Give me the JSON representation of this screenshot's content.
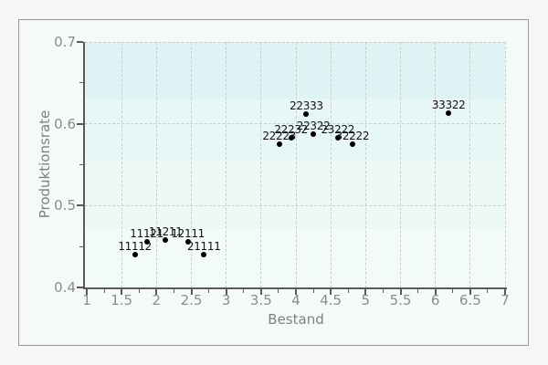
{
  "page": {
    "background": "#f7f7f7"
  },
  "frame": {
    "background": "#f5faf7",
    "border_color": "#999999"
  },
  "chart_data": {
    "type": "scatter",
    "title": "",
    "xlabel": "Bestand",
    "ylabel": "Produktionsrate",
    "xlim": [
      1,
      7
    ],
    "ylim": [
      0.4,
      0.7
    ],
    "grid": "dashed",
    "legend": null,
    "x_ticks_major": [
      1,
      1.5,
      2,
      2.5,
      3,
      3.5,
      4,
      4.5,
      5,
      5.5,
      6,
      6.5,
      7
    ],
    "x_tick_labels": [
      "1",
      "1.5",
      "2",
      "2.5",
      "3",
      "3.5",
      "4",
      "4.5",
      "5",
      "5.5",
      "6",
      "6.5",
      "7"
    ],
    "x_ticks_minor": [
      1.25,
      1.75,
      2.25,
      2.75,
      3.25,
      3.75,
      4.25,
      4.75,
      5.25,
      5.75,
      6.25,
      6.75
    ],
    "y_ticks_major": [
      0.4,
      0.5,
      0.6,
      0.7
    ],
    "y_tick_labels": [
      "0.4",
      "0.5",
      "0.6",
      "0.7"
    ],
    "y_ticks_minor": [
      0.45,
      0.55,
      0.65
    ],
    "x_gridlines": [
      1.5,
      2,
      2.5,
      3,
      3.5,
      4,
      4.5,
      5,
      5.5,
      6,
      6.5,
      7
    ],
    "y_gridlines": [
      0.5,
      0.6,
      0.7
    ],
    "points": [
      {
        "label": "11112",
        "x": 1.69,
        "y": 0.44
      },
      {
        "label": "11121",
        "x": 1.86,
        "y": 0.456
      },
      {
        "label": "11211",
        "x": 2.13,
        "y": 0.458
      },
      {
        "label": "12111",
        "x": 2.45,
        "y": 0.456
      },
      {
        "label": "21111",
        "x": 2.68,
        "y": 0.44
      },
      {
        "label": "22223",
        "x": 3.76,
        "y": 0.575
      },
      {
        "label": "22232",
        "x": 3.93,
        "y": 0.583
      },
      {
        "label": "22322",
        "x": 4.25,
        "y": 0.587
      },
      {
        "label": "23222",
        "x": 4.6,
        "y": 0.583
      },
      {
        "label": "22333",
        "x": 4.15,
        "y": 0.612
      },
      {
        "label": "32222",
        "x": 4.81,
        "y": 0.575
      },
      {
        "label": "33322",
        "x": 6.19,
        "y": 0.613
      }
    ]
  },
  "colors": {
    "plot_bands": [
      "#def4f4",
      "#e6f7f5",
      "#edf9f6",
      "#f3fbf8"
    ],
    "band_stops": [
      0,
      0.23,
      0.48,
      0.76
    ],
    "axis": "#595959",
    "tick_label": "#8c8c8c",
    "axis_title": "#808080",
    "gridline": "#cccccc",
    "point": "#000000",
    "point_label": "#111111"
  }
}
